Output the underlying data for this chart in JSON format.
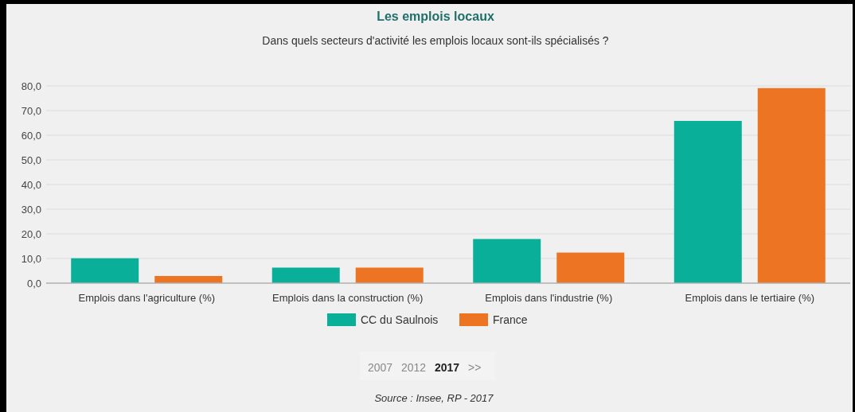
{
  "chart_data": {
    "type": "bar",
    "title": "Les emplois locaux",
    "subtitle": "Dans quels secteurs d'activité les emplois locaux sont-ils spécialisés ?",
    "categories": [
      "Emplois dans l'agriculture (%)",
      "Emplois dans la construction (%)",
      "Emplois dans l'industrie (%)",
      "Emplois dans le tertiaire (%)"
    ],
    "series": [
      {
        "name": "CC du Saulnois",
        "color": "#0aaf9a",
        "values": [
          10.1,
          6.3,
          17.9,
          65.8
        ]
      },
      {
        "name": "France",
        "color": "#ec7423",
        "values": [
          2.9,
          6.3,
          12.4,
          79.1
        ]
      }
    ],
    "ylim": [
      0,
      80
    ],
    "yticks": [
      {
        "value": 0,
        "label": "0,0"
      },
      {
        "value": 10,
        "label": "10,0"
      },
      {
        "value": 20,
        "label": "20,0"
      },
      {
        "value": 30,
        "label": "30,0"
      },
      {
        "value": 40,
        "label": "40,0"
      },
      {
        "value": 50,
        "label": "50,0"
      },
      {
        "value": 60,
        "label": "60,0"
      },
      {
        "value": 70,
        "label": "70,0"
      },
      {
        "value": 80,
        "label": "80,0"
      }
    ],
    "grid": "y",
    "legend": "bottom",
    "annotations": [
      "2007",
      "2012",
      "2017",
      ">>",
      "Source : Insee, RP - 2017"
    ]
  }
}
